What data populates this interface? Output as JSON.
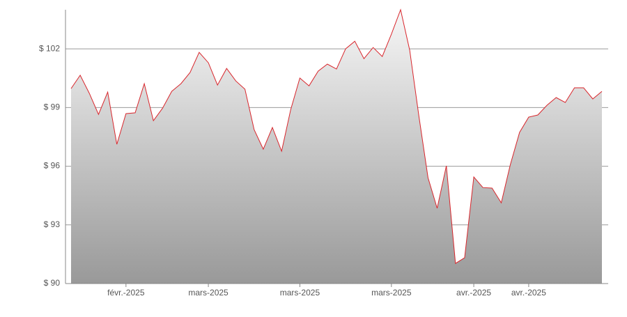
{
  "chart_data": {
    "type": "area",
    "categories": [
      null,
      null,
      null,
      null,
      null,
      null,
      "févr.-2025",
      null,
      null,
      null,
      null,
      null,
      null,
      null,
      null,
      "mars-2025",
      null,
      null,
      null,
      null,
      null,
      null,
      null,
      null,
      null,
      "mars-2025",
      null,
      null,
      null,
      null,
      null,
      null,
      null,
      null,
      null,
      "mars-2025",
      null,
      null,
      null,
      null,
      null,
      null,
      null,
      null,
      "avr.-2025",
      null,
      null,
      null,
      null,
      null,
      "avr.-2025",
      null,
      null,
      null,
      null,
      null,
      null,
      null,
      null
    ],
    "values": [
      99.97,
      100.65,
      99.72,
      98.65,
      99.79,
      97.12,
      98.69,
      98.73,
      100.22,
      98.33,
      98.97,
      99.83,
      100.22,
      100.79,
      101.82,
      101.29,
      100.15,
      101.0,
      100.36,
      99.94,
      97.87,
      96.87,
      97.98,
      96.77,
      98.9,
      100.51,
      100.11,
      100.86,
      101.22,
      100.97,
      102.0,
      102.39,
      101.5,
      102.07,
      101.61,
      102.75,
      104.0,
      101.93,
      98.58,
      95.41,
      93.85,
      96.02,
      91.03,
      91.32,
      95.45,
      94.91,
      94.88,
      94.13,
      96.09,
      97.73,
      98.51,
      98.62,
      99.12,
      99.51,
      99.26,
      100.01,
      100.01,
      99.44,
      99.83
    ],
    "color": "#d9262c",
    "ylim": [
      90,
      104
    ],
    "yticks": [
      {
        "value": 90,
        "label": "$ 90"
      },
      {
        "value": 93,
        "label": "$ 93"
      },
      {
        "value": 96,
        "label": "$ 96"
      },
      {
        "value": 99,
        "label": "$ 99"
      },
      {
        "value": 102,
        "label": "$ 102"
      }
    ],
    "grid": true
  }
}
